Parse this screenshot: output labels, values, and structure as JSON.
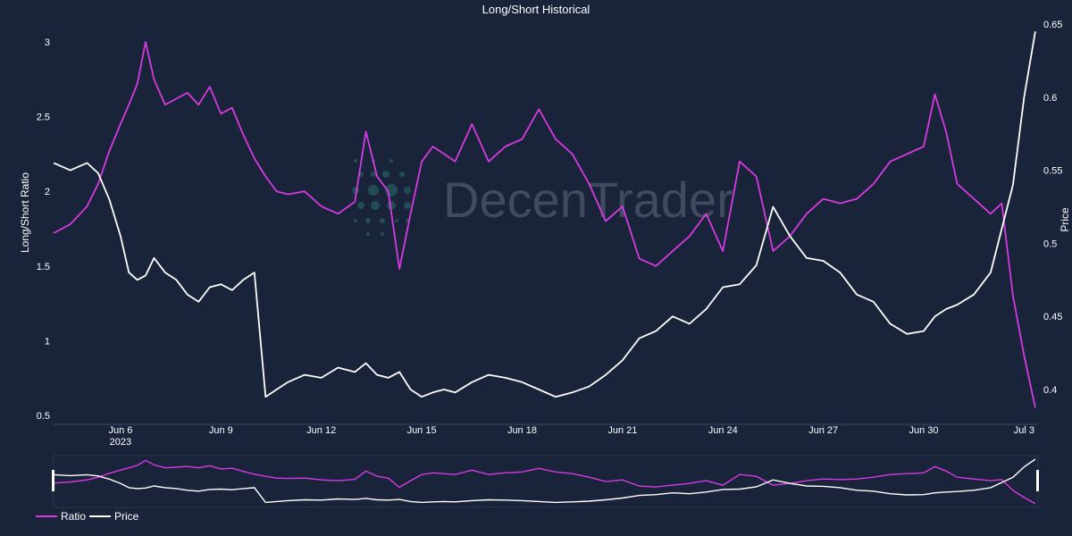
{
  "chart_data": {
    "type": "line",
    "title": "Long/Short Historical",
    "ylabel_left": "Long/Short Ratio",
    "ylabel_right": "Price",
    "y_left_ticks": [
      "0.5",
      "1",
      "1.5",
      "2",
      "2.5",
      "3"
    ],
    "y_right_ticks": [
      "0.4",
      "0.45",
      "0.5",
      "0.55",
      "0.6",
      "0.65"
    ],
    "x_ticks": [
      {
        "label": "Jun 6",
        "sublabel": "2023"
      },
      {
        "label": "Jun 9",
        "sublabel": ""
      },
      {
        "label": "Jun 12",
        "sublabel": ""
      },
      {
        "label": "Jun 15",
        "sublabel": ""
      },
      {
        "label": "Jun 18",
        "sublabel": ""
      },
      {
        "label": "Jun 21",
        "sublabel": ""
      },
      {
        "label": "Jun 24",
        "sublabel": ""
      },
      {
        "label": "Jun 27",
        "sublabel": ""
      },
      {
        "label": "Jun 30",
        "sublabel": ""
      },
      {
        "label": "Jul 3",
        "sublabel": ""
      }
    ],
    "ylim_left": [
      0.5,
      3.0
    ],
    "ylim_right": [
      0.4,
      0.65
    ],
    "x_range": [
      "2023-06-04",
      "2023-07-03"
    ],
    "grid": false,
    "legend_position": "bottom-left",
    "has_range_slider": true,
    "series": [
      {
        "name": "Ratio",
        "color": "#d63ae0",
        "axis": "left",
        "points": [
          [
            "2023-06-04",
            1.72
          ],
          [
            "2023-06-04T12:00",
            1.78
          ],
          [
            "2023-06-05",
            1.9
          ],
          [
            "2023-06-05T08:00",
            2.05
          ],
          [
            "2023-06-05T16:00",
            2.27
          ],
          [
            "2023-06-06",
            2.45
          ],
          [
            "2023-06-06T06:00",
            2.58
          ],
          [
            "2023-06-06T12:00",
            2.72
          ],
          [
            "2023-06-06T18:00",
            3.0
          ],
          [
            "2023-06-07",
            2.75
          ],
          [
            "2023-06-07T08:00",
            2.58
          ],
          [
            "2023-06-07T16:00",
            2.62
          ],
          [
            "2023-06-08",
            2.66
          ],
          [
            "2023-06-08T08:00",
            2.58
          ],
          [
            "2023-06-08T16:00",
            2.7
          ],
          [
            "2023-06-09",
            2.52
          ],
          [
            "2023-06-09T08:00",
            2.56
          ],
          [
            "2023-06-09T16:00",
            2.38
          ],
          [
            "2023-06-10",
            2.22
          ],
          [
            "2023-06-10T08:00",
            2.1
          ],
          [
            "2023-06-10T16:00",
            2.0
          ],
          [
            "2023-06-11",
            1.98
          ],
          [
            "2023-06-11T12:00",
            2.0
          ],
          [
            "2023-06-12",
            1.9
          ],
          [
            "2023-06-12T12:00",
            1.85
          ],
          [
            "2023-06-13",
            1.93
          ],
          [
            "2023-06-13T08:00",
            2.4
          ],
          [
            "2023-06-13T16:00",
            2.1
          ],
          [
            "2023-06-14",
            2.0
          ],
          [
            "2023-06-14T08:00",
            1.48
          ],
          [
            "2023-06-14T16:00",
            1.85
          ],
          [
            "2023-06-15",
            2.2
          ],
          [
            "2023-06-15T08:00",
            2.3
          ],
          [
            "2023-06-15T16:00",
            2.25
          ],
          [
            "2023-06-16",
            2.2
          ],
          [
            "2023-06-16T12:00",
            2.45
          ],
          [
            "2023-06-17",
            2.2
          ],
          [
            "2023-06-17T12:00",
            2.3
          ],
          [
            "2023-06-18",
            2.35
          ],
          [
            "2023-06-18T12:00",
            2.55
          ],
          [
            "2023-06-19",
            2.35
          ],
          [
            "2023-06-19T12:00",
            2.25
          ],
          [
            "2023-06-20",
            2.05
          ],
          [
            "2023-06-20T12:00",
            1.8
          ],
          [
            "2023-06-21",
            1.9
          ],
          [
            "2023-06-21T12:00",
            1.55
          ],
          [
            "2023-06-22",
            1.5
          ],
          [
            "2023-06-22T12:00",
            1.6
          ],
          [
            "2023-06-23",
            1.7
          ],
          [
            "2023-06-23T12:00",
            1.85
          ],
          [
            "2023-06-24",
            1.6
          ],
          [
            "2023-06-24T12:00",
            2.2
          ],
          [
            "2023-06-25",
            2.1
          ],
          [
            "2023-06-25T12:00",
            1.6
          ],
          [
            "2023-06-26",
            1.7
          ],
          [
            "2023-06-26T12:00",
            1.85
          ],
          [
            "2023-06-27",
            1.95
          ],
          [
            "2023-06-27T12:00",
            1.92
          ],
          [
            "2023-06-28",
            1.95
          ],
          [
            "2023-06-28T12:00",
            2.05
          ],
          [
            "2023-06-29",
            2.2
          ],
          [
            "2023-06-29T12:00",
            2.25
          ],
          [
            "2023-06-30",
            2.3
          ],
          [
            "2023-06-30T08:00",
            2.65
          ],
          [
            "2023-06-30T16:00",
            2.4
          ],
          [
            "2023-07-01",
            2.05
          ],
          [
            "2023-07-01T12:00",
            1.95
          ],
          [
            "2023-07-02",
            1.85
          ],
          [
            "2023-07-02T08:00",
            1.92
          ],
          [
            "2023-07-02T16:00",
            1.3
          ],
          [
            "2023-07-03",
            0.9
          ],
          [
            "2023-07-03T08:00",
            0.55
          ]
        ]
      },
      {
        "name": "Price",
        "color": "#ffffff",
        "axis": "right",
        "points": [
          [
            "2023-06-04",
            0.555
          ],
          [
            "2023-06-04T12:00",
            0.55
          ],
          [
            "2023-06-05",
            0.555
          ],
          [
            "2023-06-05T08:00",
            0.548
          ],
          [
            "2023-06-05T16:00",
            0.53
          ],
          [
            "2023-06-06",
            0.505
          ],
          [
            "2023-06-06T06:00",
            0.48
          ],
          [
            "2023-06-06T12:00",
            0.475
          ],
          [
            "2023-06-06T18:00",
            0.478
          ],
          [
            "2023-06-07",
            0.49
          ],
          [
            "2023-06-07T08:00",
            0.48
          ],
          [
            "2023-06-07T16:00",
            0.475
          ],
          [
            "2023-06-08",
            0.465
          ],
          [
            "2023-06-08T08:00",
            0.46
          ],
          [
            "2023-06-08T16:00",
            0.47
          ],
          [
            "2023-06-09",
            0.472
          ],
          [
            "2023-06-09T08:00",
            0.468
          ],
          [
            "2023-06-09T16:00",
            0.475
          ],
          [
            "2023-06-10",
            0.48
          ],
          [
            "2023-06-10T08:00",
            0.395
          ],
          [
            "2023-06-10T16:00",
            0.4
          ],
          [
            "2023-06-11",
            0.405
          ],
          [
            "2023-06-11T12:00",
            0.41
          ],
          [
            "2023-06-12",
            0.408
          ],
          [
            "2023-06-12T12:00",
            0.415
          ],
          [
            "2023-06-13",
            0.412
          ],
          [
            "2023-06-13T08:00",
            0.418
          ],
          [
            "2023-06-13T16:00",
            0.41
          ],
          [
            "2023-06-14",
            0.408
          ],
          [
            "2023-06-14T08:00",
            0.412
          ],
          [
            "2023-06-14T16:00",
            0.4
          ],
          [
            "2023-06-15",
            0.395
          ],
          [
            "2023-06-15T08:00",
            0.398
          ],
          [
            "2023-06-15T16:00",
            0.4
          ],
          [
            "2023-06-16",
            0.398
          ],
          [
            "2023-06-16T12:00",
            0.405
          ],
          [
            "2023-06-17",
            0.41
          ],
          [
            "2023-06-17T12:00",
            0.408
          ],
          [
            "2023-06-18",
            0.405
          ],
          [
            "2023-06-18T12:00",
            0.4
          ],
          [
            "2023-06-19",
            0.395
          ],
          [
            "2023-06-19T12:00",
            0.398
          ],
          [
            "2023-06-20",
            0.402
          ],
          [
            "2023-06-20T12:00",
            0.41
          ],
          [
            "2023-06-21",
            0.42
          ],
          [
            "2023-06-21T12:00",
            0.435
          ],
          [
            "2023-06-22",
            0.44
          ],
          [
            "2023-06-22T12:00",
            0.45
          ],
          [
            "2023-06-23",
            0.445
          ],
          [
            "2023-06-23T12:00",
            0.455
          ],
          [
            "2023-06-24",
            0.47
          ],
          [
            "2023-06-24T12:00",
            0.472
          ],
          [
            "2023-06-25",
            0.485
          ],
          [
            "2023-06-25T12:00",
            0.525
          ],
          [
            "2023-06-26",
            0.505
          ],
          [
            "2023-06-26T12:00",
            0.49
          ],
          [
            "2023-06-27",
            0.488
          ],
          [
            "2023-06-27T12:00",
            0.48
          ],
          [
            "2023-06-28",
            0.465
          ],
          [
            "2023-06-28T12:00",
            0.46
          ],
          [
            "2023-06-29",
            0.445
          ],
          [
            "2023-06-29T12:00",
            0.438
          ],
          [
            "2023-06-30",
            0.44
          ],
          [
            "2023-06-30T08:00",
            0.45
          ],
          [
            "2023-06-30T16:00",
            0.455
          ],
          [
            "2023-07-01",
            0.458
          ],
          [
            "2023-07-01T12:00",
            0.465
          ],
          [
            "2023-07-02",
            0.48
          ],
          [
            "2023-07-02T08:00",
            0.51
          ],
          [
            "2023-07-02T16:00",
            0.54
          ],
          [
            "2023-07-03",
            0.6
          ],
          [
            "2023-07-03T08:00",
            0.645
          ]
        ]
      }
    ]
  },
  "watermark": {
    "text": "DecenTrader",
    "logo_color": "#2e7e7a"
  },
  "legend": {
    "ratio_label": "Ratio",
    "price_label": "Price"
  },
  "colors": {
    "background": "#19233a",
    "ratio": "#d63ae0",
    "price": "#ffffff"
  }
}
